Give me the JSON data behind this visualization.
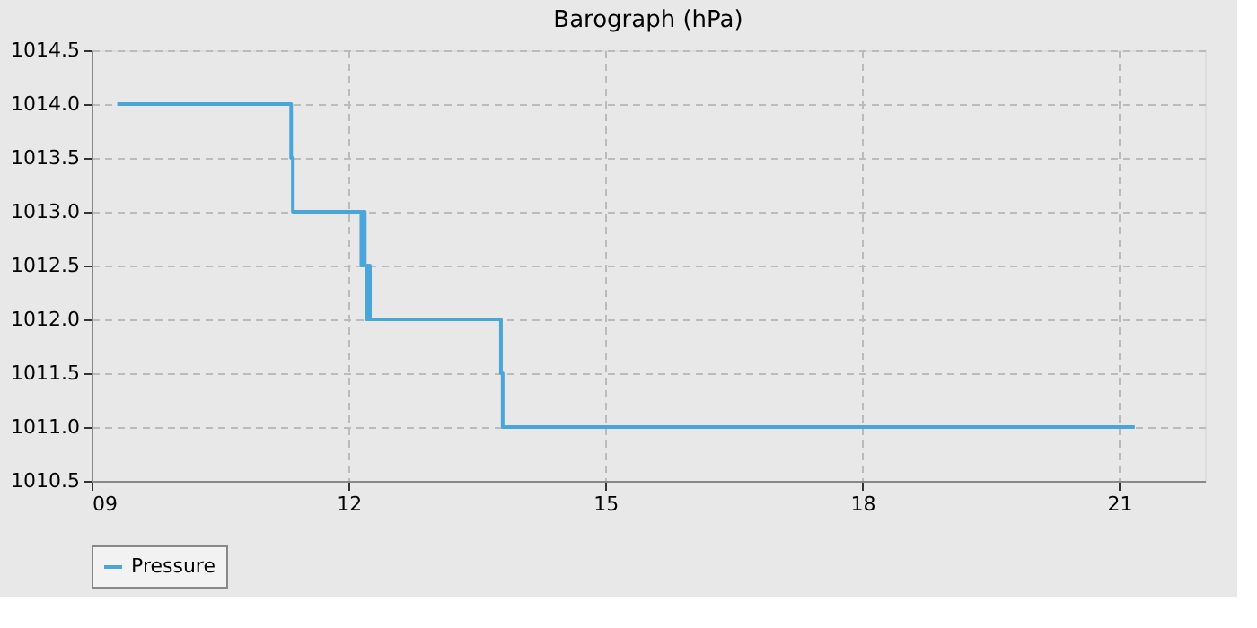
{
  "chart_data": {
    "type": "step",
    "title": "Barograph (hPa)",
    "x": [
      9.3,
      11.33,
      11.35,
      12.15,
      12.17,
      12.19,
      12.21,
      12.22,
      12.23,
      12.24,
      12.25,
      13.78,
      13.8,
      21.18
    ],
    "series": [
      {
        "name": "Pressure",
        "color": "#4aa6d8",
        "values": [
          1014,
          1013.5,
          1013,
          1012.5,
          1013,
          1012.5,
          1012,
          1012.5,
          1012,
          1012.5,
          1012,
          1011.5,
          1011,
          1011
        ]
      }
    ],
    "xlim": [
      9,
      22
    ],
    "xticks": [
      {
        "value": 9,
        "label": "09"
      },
      12,
      15,
      18,
      21
    ],
    "ylim": [
      1010.5,
      1014.5
    ],
    "yticks": [
      {
        "value": 1010.5,
        "label": "1010.5"
      },
      {
        "value": 1011,
        "label": "1011.0"
      },
      {
        "value": 1011.5,
        "label": "1011.5"
      },
      {
        "value": 1012,
        "label": "1012.0"
      },
      {
        "value": 1012.5,
        "label": "1012.5"
      },
      {
        "value": 1013,
        "label": "1013.0"
      },
      {
        "value": 1013.5,
        "label": "1013.5"
      },
      {
        "value": 1014,
        "label": "1014.0"
      },
      {
        "value": 1014.5,
        "label": "1014.5"
      }
    ],
    "grid": true,
    "legend": "bottom",
    "line_style": "solid",
    "marker": "none"
  }
}
